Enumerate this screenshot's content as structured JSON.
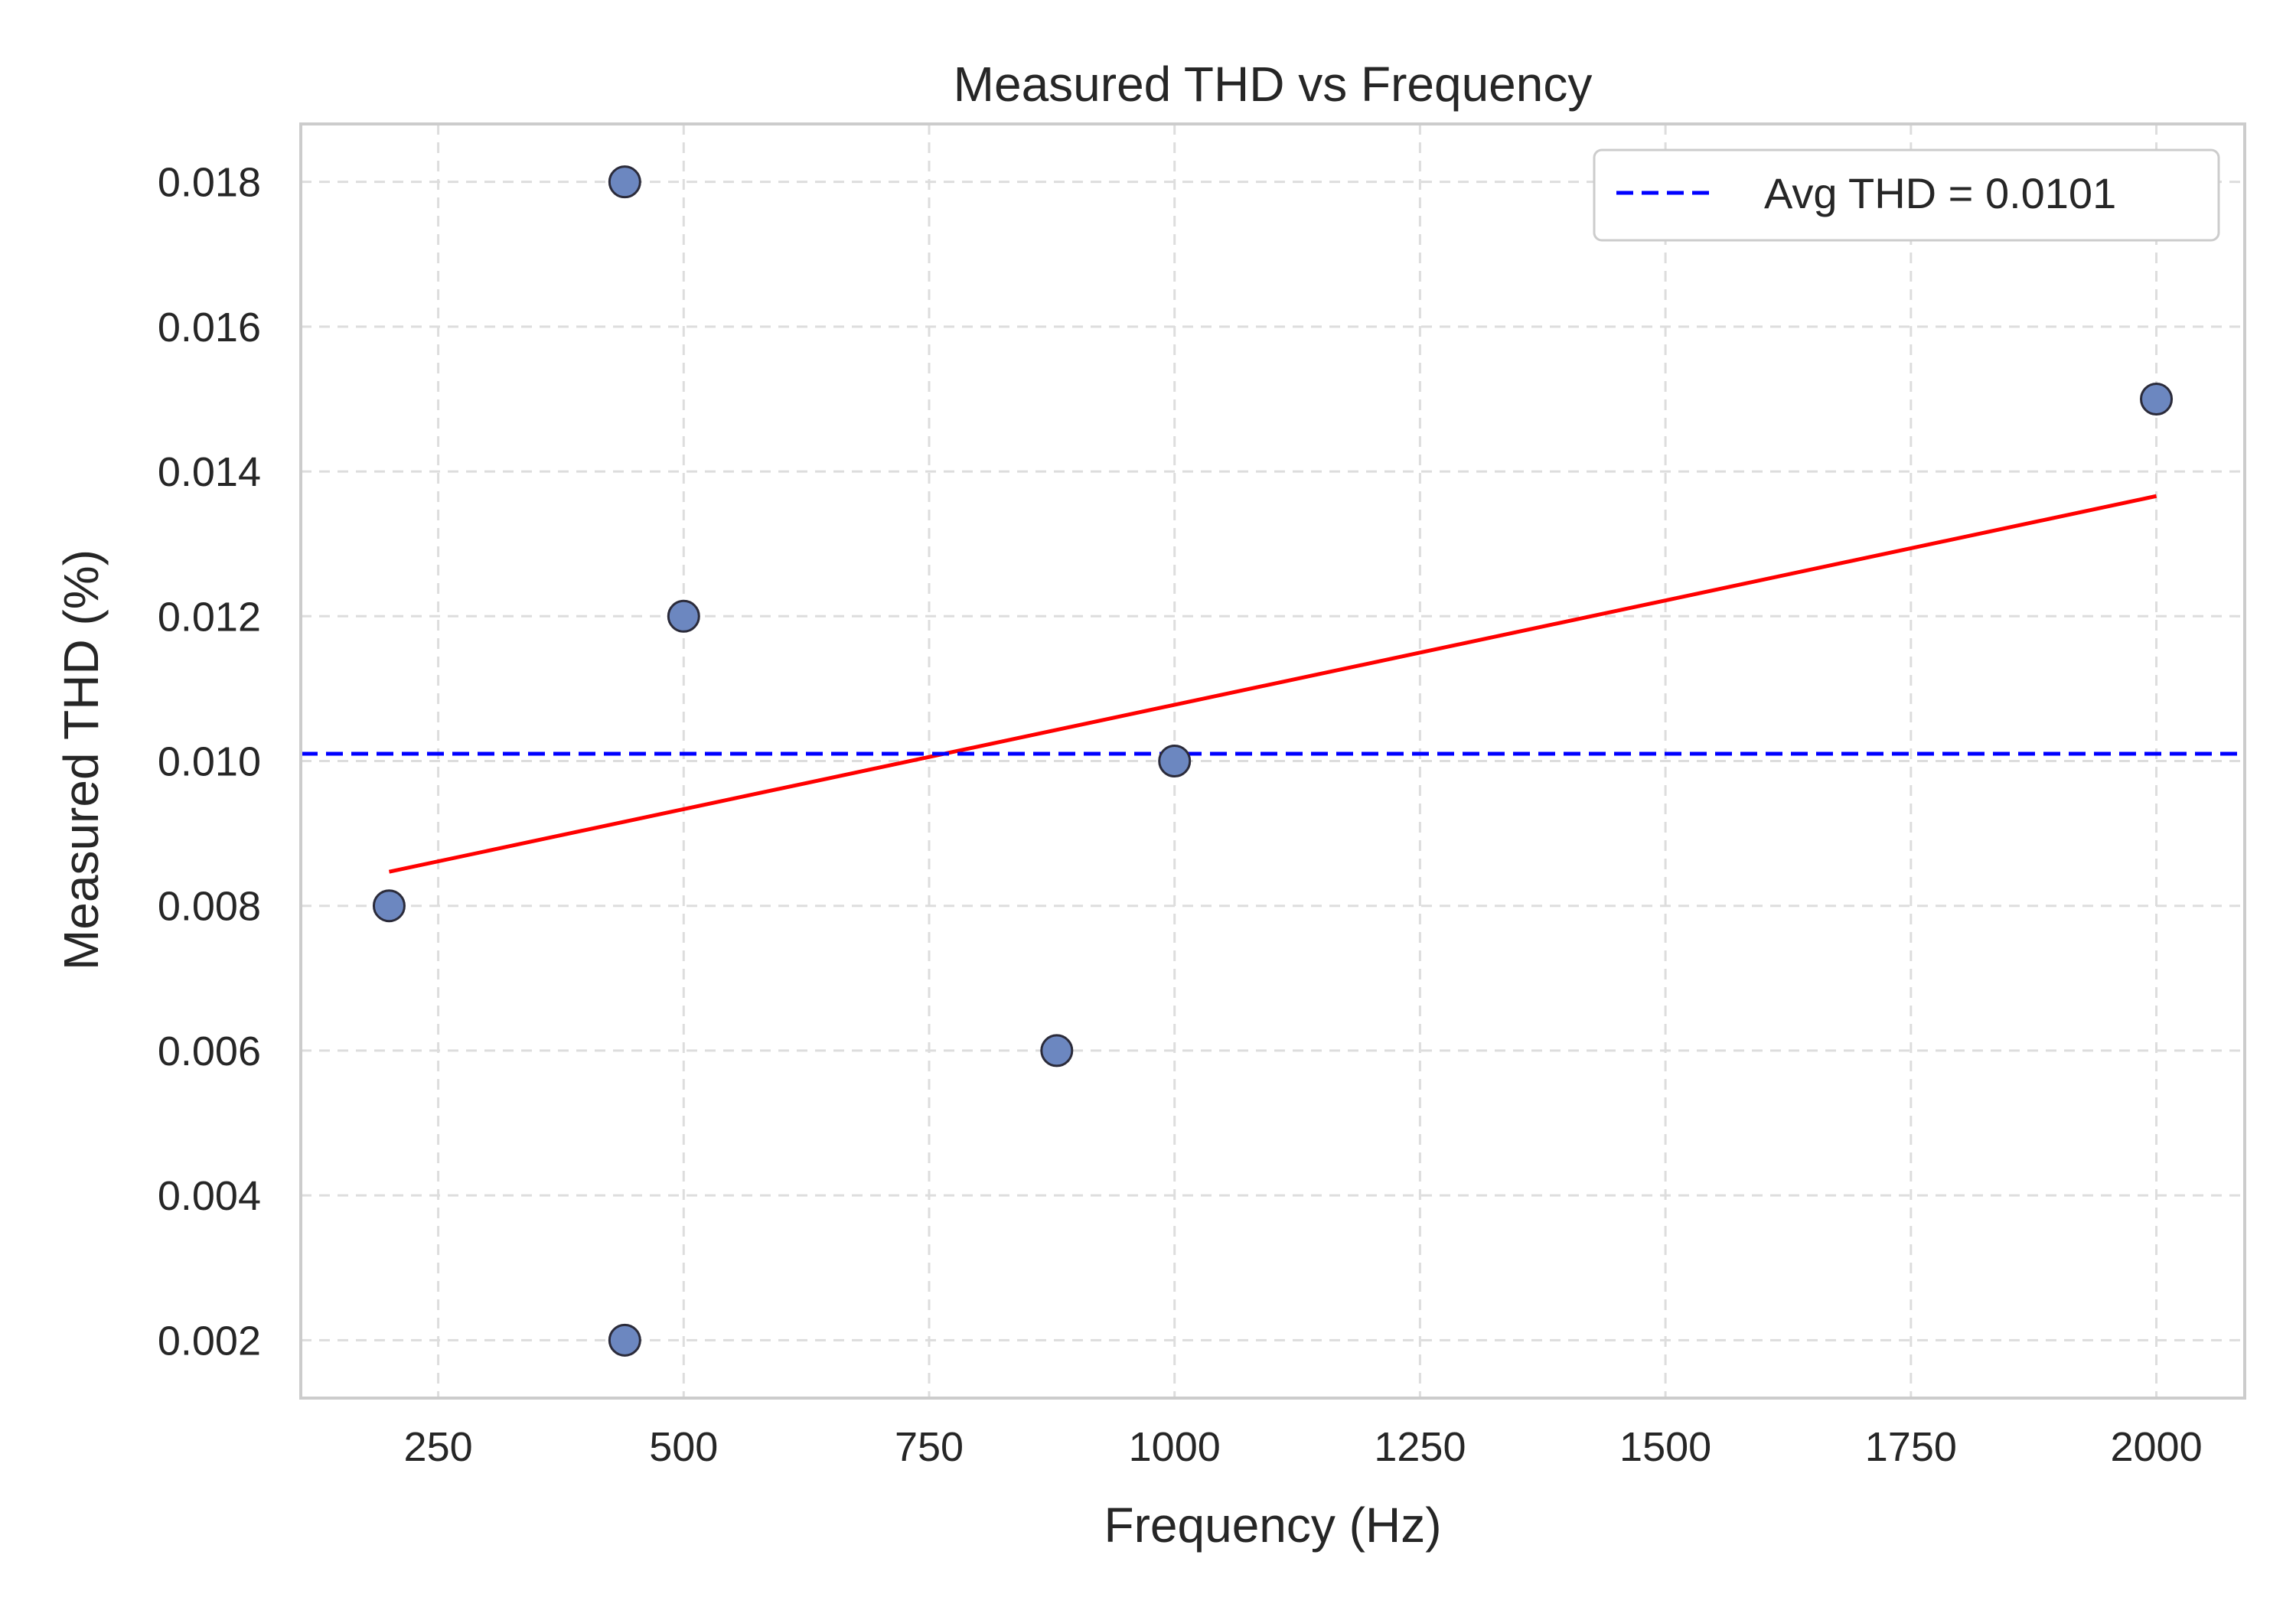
{
  "chart_data": {
    "type": "scatter",
    "title": "Measured THD vs Frequency",
    "xlabel": "Frequency (Hz)",
    "ylabel": "Measured THD (%)",
    "xlim": [
      110,
      2090
    ],
    "ylim": [
      0.0012,
      0.0188
    ],
    "xticks": [
      250,
      500,
      750,
      1000,
      1250,
      1500,
      1750,
      2000
    ],
    "xtick_labels": [
      "250",
      "500",
      "750",
      "1000",
      "1250",
      "1500",
      "1750",
      "2000"
    ],
    "yticks": [
      0.002,
      0.004,
      0.006,
      0.008,
      0.01,
      0.012,
      0.014,
      0.016,
      0.018
    ],
    "ytick_labels": [
      "0.002",
      "0.004",
      "0.006",
      "0.008",
      "0.010",
      "0.012",
      "0.014",
      "0.016",
      "0.018"
    ],
    "grid": true,
    "legend_position": "top-right",
    "points": [
      {
        "x": 200,
        "y": 0.008
      },
      {
        "x": 440,
        "y": 0.018
      },
      {
        "x": 440,
        "y": 0.002
      },
      {
        "x": 500,
        "y": 0.012
      },
      {
        "x": 880,
        "y": 0.006
      },
      {
        "x": 1000,
        "y": 0.01
      },
      {
        "x": 2000,
        "y": 0.015
      }
    ],
    "fit_line": {
      "x": [
        200,
        2000
      ],
      "y": [
        0.00847,
        0.01366
      ]
    },
    "avg_line": {
      "y": 0.0101,
      "label": "Avg THD = 0.0101"
    },
    "colors": {
      "points": "#6c87c0",
      "point_edge": "#2b2b3a",
      "fit_line": "#ff0000",
      "avg_line": "#0000ff",
      "grid": "#dddddd",
      "frame": "#cccccc"
    }
  }
}
